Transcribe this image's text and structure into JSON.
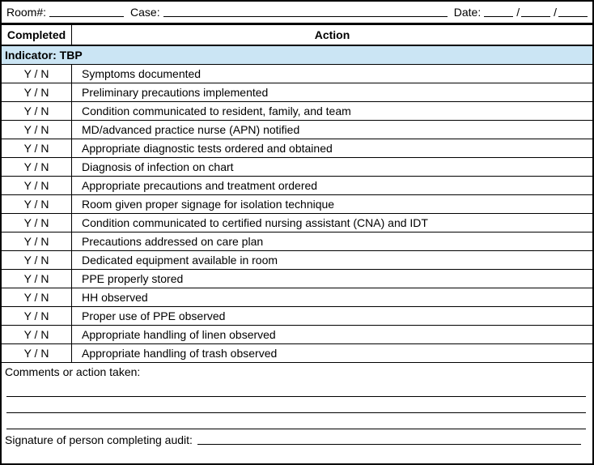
{
  "form": {
    "top": {
      "room_label": "Room#:",
      "case_label": "Case:",
      "date_label": "Date:",
      "date_separator": "/"
    },
    "table": {
      "completed_header": "Completed",
      "action_header": "Action",
      "indicator_label": "Indicator: TBP",
      "rows": [
        {
          "completed": "Y / N",
          "action": "Symptoms documented"
        },
        {
          "completed": "Y / N",
          "action": "Preliminary precautions implemented"
        },
        {
          "completed": "Y / N",
          "action": "Condition communicated to resident, family, and team"
        },
        {
          "completed": "Y / N",
          "action": "MD/advanced practice nurse (APN) notified"
        },
        {
          "completed": "Y / N",
          "action": "Appropriate diagnostic tests ordered and obtained"
        },
        {
          "completed": "Y / N",
          "action": "Diagnosis of infection on chart"
        },
        {
          "completed": "Y / N",
          "action": "Appropriate precautions and treatment ordered"
        },
        {
          "completed": "Y / N",
          "action": "Room given proper signage for isolation technique"
        },
        {
          "completed": "Y / N",
          "action": "Condition communicated to certified nursing assistant (CNA) and IDT"
        },
        {
          "completed": "Y / N",
          "action": "Precautions addressed on care plan"
        },
        {
          "completed": "Y / N",
          "action": "Dedicated equipment available in room"
        },
        {
          "completed": "Y / N",
          "action": "PPE properly stored"
        },
        {
          "completed": "Y / N",
          "action": "HH observed"
        },
        {
          "completed": "Y / N",
          "action": "Proper use of PPE observed"
        },
        {
          "completed": "Y / N",
          "action": "Appropriate handling of linen observed"
        },
        {
          "completed": "Y / N",
          "action": "Appropriate handling of trash observed"
        }
      ]
    },
    "comments_label": "Comments or action taken:",
    "signature_label": "Signature of person completing audit:",
    "colors": {
      "indicator_bg": "#CBE5F4",
      "border": "#000000"
    }
  }
}
